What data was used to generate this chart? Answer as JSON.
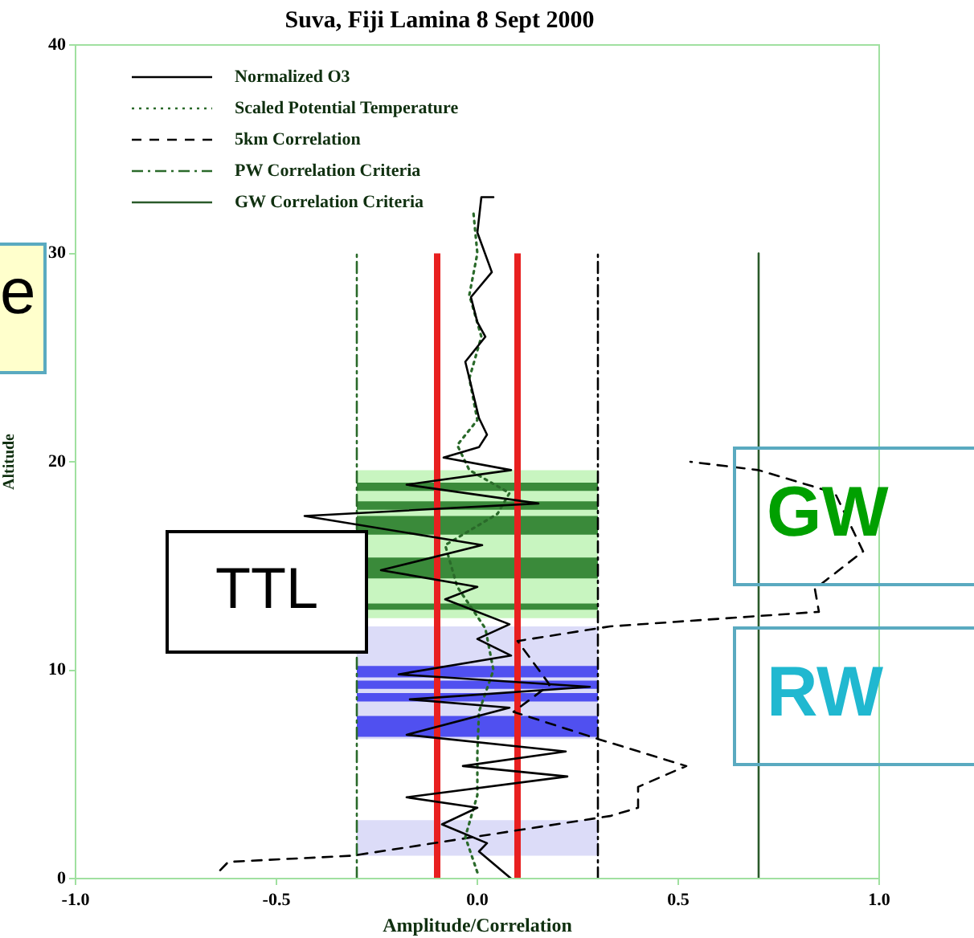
{
  "chart_data": {
    "type": "line",
    "title": "Suva, Fiji Lamina 8 Sept 2000",
    "xlabel": "Amplitude/Correlation",
    "ylabel": "Altitude",
    "xlim": [
      -1.0,
      1.0
    ],
    "xticks": [
      {
        "value": -1,
        "label": "-1.0"
      },
      {
        "value": -0.5,
        "label": "-0.5"
      },
      {
        "value": 0,
        "label": "0.0"
      },
      {
        "value": 0.5,
        "label": "0.5"
      },
      {
        "value": 1,
        "label": "1.0"
      }
    ],
    "ylim": [
      0,
      40
    ],
    "yticks": [
      0,
      10,
      20,
      30,
      40
    ],
    "grid": false,
    "legend": "top left",
    "series": [
      {
        "name": "Normalized O3",
        "color": "#000000",
        "line_style": "solid",
        "x": [
          0.084,
          0.004,
          0.024,
          -0.088,
          0,
          -0.176,
          0.224,
          -0.036,
          0.22,
          -0.176,
          0.08,
          -0.168,
          0.28,
          -0.196,
          0.084,
          0,
          0.08,
          -0.08,
          0,
          -0.24,
          0.012,
          -0.43,
          0.152,
          -0.176,
          0.084,
          -0.084,
          0.004,
          0.024,
          0.004,
          -0.016,
          -0.03,
          0.02,
          0,
          -0.016,
          0.036,
          0,
          0.01,
          0.04
        ],
        "values": [
          0,
          1.3,
          1.7,
          2.6,
          3.4,
          3.9,
          4.9,
          5.4,
          6.1,
          6.9,
          8.2,
          8.6,
          9.2,
          9.8,
          10.7,
          11.5,
          12.2,
          13.4,
          14,
          14.8,
          16,
          17.4,
          18,
          18.9,
          19.6,
          20.2,
          20.7,
          21.3,
          22.1,
          23.7,
          24.8,
          26,
          26.7,
          27.9,
          29.1,
          31,
          32.7,
          32.7
        ]
      },
      {
        "name": "Scaled Potential Temperature",
        "color": "#2a6a2a",
        "line_style": "dotted",
        "x": [
          0,
          -0.03,
          0,
          0,
          0.004,
          0.04,
          0.02,
          -0.05,
          -0.08,
          0.05,
          0.08,
          -0.02,
          -0.05,
          0,
          -0.02,
          0.01,
          -0.02,
          0,
          -0.01
        ],
        "values": [
          0.3,
          2,
          4,
          6,
          8,
          10,
          12,
          14,
          16,
          17.5,
          18.5,
          19.6,
          20.8,
          22,
          24,
          26,
          28,
          30,
          32
        ]
      },
      {
        "name": "5km Correlation",
        "color": "#000000",
        "line_style": "dashed",
        "x": [
          -0.64,
          -0.62,
          -0.31,
          0.33,
          0.4,
          0.4,
          0.52,
          0.3,
          0.09,
          0.18,
          0.1,
          0.33,
          0.85,
          0.84,
          0.96,
          0.89,
          0.7,
          0.53
        ],
        "values": [
          0.4,
          0.8,
          1.1,
          3,
          3.4,
          4.4,
          5.4,
          6.7,
          8,
          9.3,
          11.4,
          12.1,
          12.8,
          13.9,
          15.7,
          18.5,
          19.6,
          20
        ]
      },
      {
        "name": "PW Correlation Criteria",
        "color": "#2a6a2a",
        "line_style": "dashdot",
        "x": [
          -0.3,
          -0.3
        ],
        "values": [
          0,
          30
        ]
      },
      {
        "color": "#000000",
        "line_style": "dashdot",
        "x": [
          0.3,
          0.3
        ],
        "values": [
          0,
          30
        ]
      },
      {
        "name": "GW Correlation Criteria",
        "color": "#2a5a2a",
        "line_style": "solid",
        "x": [
          0.7,
          0.7
        ],
        "values": [
          0,
          30
        ]
      },
      {
        "color": "#e82020",
        "x": [
          -0.1,
          -0.1
        ],
        "values": [
          0,
          30
        ]
      },
      {
        "color": "#e82020",
        "x": [
          0.1,
          0.1
        ],
        "values": [
          0,
          30
        ]
      }
    ],
    "bands": [
      {
        "axis": "y",
        "from": 12.5,
        "to": 19.6,
        "color": "#c8f5c0"
      },
      {
        "axis": "y",
        "from": 18.6,
        "to": 19.0,
        "color": "#3a8a3a"
      },
      {
        "axis": "y",
        "from": 17.7,
        "to": 18.1,
        "color": "#3a8a3a"
      },
      {
        "axis": "y",
        "from": 16.5,
        "to": 17.4,
        "color": "#3a8a3a"
      },
      {
        "axis": "y",
        "from": 14.4,
        "to": 15.4,
        "color": "#3a8a3a"
      },
      {
        "axis": "y",
        "from": 12.9,
        "to": 13.2,
        "color": "#3a8a3a"
      },
      {
        "axis": "y",
        "from": 6.7,
        "to": 12.1,
        "color": "#dcdcf8"
      },
      {
        "axis": "y",
        "from": 9.65,
        "to": 10.2,
        "color": "#5050f0"
      },
      {
        "axis": "y",
        "from": 9.1,
        "to": 9.5,
        "color": "#5050f0"
      },
      {
        "axis": "y",
        "from": 8.5,
        "to": 8.9,
        "color": "#5050f0"
      },
      {
        "axis": "y",
        "from": 6.8,
        "to": 7.8,
        "color": "#5050f0"
      },
      {
        "axis": "y",
        "from": 1.1,
        "to": 2.8,
        "color": "#dcdcf8"
      }
    ],
    "annotations": [
      "e",
      "TTL",
      "GW",
      "RW"
    ]
  }
}
